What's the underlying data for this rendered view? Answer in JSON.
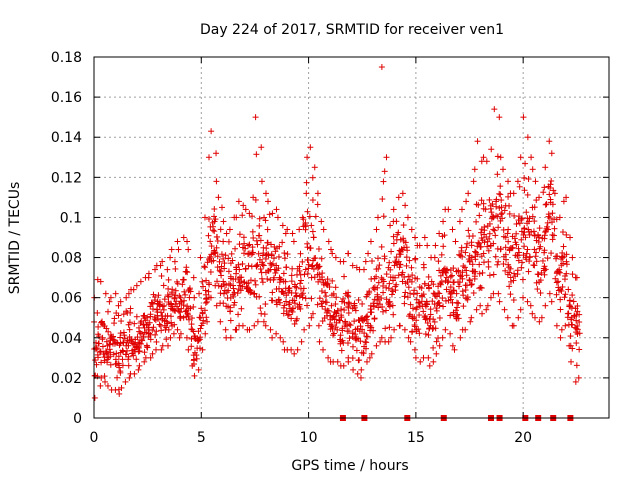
{
  "chart_data": {
    "type": "scatter",
    "title": "Day 224 of 2017, SRMTID for receiver ven1",
    "xlabel": "GPS time / hours",
    "ylabel": "SRMTID / TECUs",
    "xlim": [
      0,
      24
    ],
    "ylim": [
      0,
      0.18
    ],
    "grid": true,
    "x_ticks": [
      0,
      5,
      10,
      15,
      20
    ],
    "x_tick_labels": [
      "0",
      "5",
      "10",
      "15",
      "20"
    ],
    "y_ticks": [
      0,
      0.02,
      0.04,
      0.06,
      0.08,
      0.1,
      0.12,
      0.14,
      0.16,
      0.18
    ],
    "y_tick_labels": [
      "0",
      "0.02",
      "0.04",
      "0.06",
      "0.08",
      "0.1",
      "0.12",
      "0.14",
      "0.16",
      "0.18"
    ],
    "series": [
      {
        "name": "SRMTID",
        "color": "#e00000",
        "marker": "plus",
        "x": [
          0.0,
          0.15,
          0.3,
          0.45,
          0.6,
          0.75,
          0.9,
          1.05,
          1.2,
          1.35,
          1.5,
          1.65,
          1.8,
          1.95,
          2.1,
          2.25,
          2.4,
          2.55,
          2.7,
          2.85,
          3.0,
          3.15,
          3.3,
          3.45,
          3.6,
          3.75,
          3.9,
          4.05,
          4.2,
          4.35,
          4.5,
          4.65,
          4.8,
          4.95,
          5.1,
          5.25,
          5.4,
          5.55,
          5.7,
          5.85,
          6.0,
          6.15,
          6.3,
          6.45,
          6.6,
          6.75,
          6.9,
          7.05,
          7.2,
          7.35,
          7.5,
          7.65,
          7.8,
          7.95,
          8.1,
          8.25,
          8.4,
          8.55,
          8.7,
          8.85,
          9.0,
          9.15,
          9.3,
          9.45,
          9.6,
          9.75,
          9.9,
          10.05,
          10.2,
          10.35,
          10.5,
          10.65,
          10.8,
          10.95,
          11.1,
          11.25,
          11.4,
          11.55,
          11.7,
          11.85,
          12.0,
          12.15,
          12.3,
          12.45,
          12.6,
          12.75,
          12.9,
          13.05,
          13.2,
          13.35,
          13.5,
          13.65,
          13.8,
          13.95,
          14.1,
          14.25,
          14.4,
          14.55,
          14.7,
          14.85,
          15.0,
          15.15,
          15.3,
          15.45,
          15.6,
          15.75,
          15.9,
          16.05,
          16.2,
          16.35,
          16.5,
          16.65,
          16.8,
          16.95,
          17.1,
          17.25,
          17.4,
          17.55,
          17.7,
          17.85,
          18.0,
          18.15,
          18.3,
          18.45,
          18.6,
          18.75,
          18.9,
          19.05,
          19.2,
          19.35,
          19.5,
          19.65,
          19.8,
          19.95,
          20.1,
          20.25,
          20.4,
          20.55,
          20.7,
          20.85,
          21.0,
          21.15,
          21.3,
          21.45,
          21.6,
          21.75,
          21.9,
          22.05,
          22.2,
          22.35,
          22.5
        ],
        "y_mean": [
          0.03,
          0.038,
          0.04,
          0.036,
          0.034,
          0.035,
          0.036,
          0.032,
          0.034,
          0.036,
          0.038,
          0.04,
          0.038,
          0.04,
          0.042,
          0.044,
          0.045,
          0.046,
          0.048,
          0.05,
          0.05,
          0.052,
          0.05,
          0.055,
          0.058,
          0.06,
          0.058,
          0.06,
          0.058,
          0.055,
          0.045,
          0.035,
          0.038,
          0.05,
          0.06,
          0.07,
          0.09,
          0.1,
          0.085,
          0.075,
          0.07,
          0.065,
          0.065,
          0.07,
          0.07,
          0.075,
          0.075,
          0.072,
          0.07,
          0.075,
          0.08,
          0.085,
          0.08,
          0.078,
          0.075,
          0.07,
          0.072,
          0.07,
          0.065,
          0.06,
          0.06,
          0.058,
          0.055,
          0.06,
          0.065,
          0.075,
          0.08,
          0.085,
          0.09,
          0.08,
          0.065,
          0.06,
          0.055,
          0.05,
          0.05,
          0.048,
          0.045,
          0.045,
          0.05,
          0.05,
          0.045,
          0.045,
          0.045,
          0.045,
          0.048,
          0.05,
          0.055,
          0.06,
          0.065,
          0.07,
          0.065,
          0.065,
          0.07,
          0.075,
          0.08,
          0.08,
          0.075,
          0.07,
          0.065,
          0.06,
          0.055,
          0.055,
          0.06,
          0.055,
          0.05,
          0.05,
          0.055,
          0.06,
          0.065,
          0.07,
          0.07,
          0.06,
          0.055,
          0.065,
          0.07,
          0.07,
          0.075,
          0.08,
          0.085,
          0.09,
          0.085,
          0.09,
          0.09,
          0.095,
          0.1,
          0.1,
          0.095,
          0.09,
          0.085,
          0.08,
          0.08,
          0.085,
          0.09,
          0.1,
          0.1,
          0.095,
          0.09,
          0.085,
          0.08,
          0.085,
          0.095,
          0.105,
          0.1,
          0.08,
          0.07,
          0.075,
          0.08,
          0.06,
          0.05,
          0.045,
          0.045
        ],
        "y_min": [
          0.01,
          0.016,
          0.02,
          0.018,
          0.016,
          0.014,
          0.014,
          0.012,
          0.015,
          0.018,
          0.02,
          0.022,
          0.022,
          0.024,
          0.026,
          0.028,
          0.03,
          0.03,
          0.032,
          0.034,
          0.034,
          0.036,
          0.036,
          0.04,
          0.042,
          0.044,
          0.04,
          0.042,
          0.04,
          0.034,
          0.026,
          0.021,
          0.024,
          0.034,
          0.042,
          0.048,
          0.06,
          0.066,
          0.056,
          0.048,
          0.044,
          0.04,
          0.04,
          0.044,
          0.044,
          0.046,
          0.046,
          0.044,
          0.044,
          0.046,
          0.048,
          0.052,
          0.048,
          0.046,
          0.044,
          0.04,
          0.042,
          0.04,
          0.038,
          0.034,
          0.034,
          0.034,
          0.032,
          0.034,
          0.038,
          0.044,
          0.046,
          0.05,
          0.052,
          0.046,
          0.038,
          0.034,
          0.03,
          0.028,
          0.028,
          0.028,
          0.026,
          0.026,
          0.03,
          0.028,
          0.024,
          0.022,
          0.02,
          0.024,
          0.028,
          0.03,
          0.032,
          0.036,
          0.038,
          0.04,
          0.038,
          0.038,
          0.04,
          0.044,
          0.046,
          0.046,
          0.044,
          0.04,
          0.038,
          0.034,
          0.03,
          0.028,
          0.03,
          0.03,
          0.026,
          0.028,
          0.032,
          0.036,
          0.04,
          0.044,
          0.042,
          0.036,
          0.034,
          0.04,
          0.044,
          0.044,
          0.048,
          0.05,
          0.054,
          0.056,
          0.052,
          0.054,
          0.056,
          0.06,
          0.062,
          0.062,
          0.058,
          0.054,
          0.05,
          0.046,
          0.046,
          0.05,
          0.054,
          0.06,
          0.058,
          0.056,
          0.052,
          0.05,
          0.048,
          0.05,
          0.056,
          0.062,
          0.058,
          0.046,
          0.04,
          0.044,
          0.046,
          0.036,
          0.028,
          0.018,
          0.02
        ],
        "y_max": [
          0.06,
          0.069,
          0.068,
          0.062,
          0.058,
          0.06,
          0.062,
          0.056,
          0.058,
          0.06,
          0.062,
          0.064,
          0.064,
          0.066,
          0.068,
          0.07,
          0.07,
          0.072,
          0.074,
          0.076,
          0.076,
          0.078,
          0.074,
          0.08,
          0.084,
          0.088,
          0.084,
          0.09,
          0.088,
          0.084,
          0.07,
          0.06,
          0.062,
          0.08,
          0.1,
          0.13,
          0.143,
          0.132,
          0.118,
          0.105,
          0.098,
          0.092,
          0.094,
          0.1,
          0.1,
          0.108,
          0.106,
          0.104,
          0.102,
          0.11,
          0.15,
          0.135,
          0.118,
          0.112,
          0.108,
          0.102,
          0.104,
          0.1,
          0.096,
          0.092,
          0.094,
          0.092,
          0.088,
          0.094,
          0.1,
          0.112,
          0.13,
          0.135,
          0.125,
          0.112,
          0.098,
          0.094,
          0.088,
          0.084,
          0.082,
          0.08,
          0.078,
          0.078,
          0.082,
          0.082,
          0.076,
          0.075,
          0.074,
          0.074,
          0.078,
          0.082,
          0.088,
          0.094,
          0.1,
          0.175,
          0.13,
          0.096,
          0.098,
          0.104,
          0.11,
          0.112,
          0.106,
          0.1,
          0.094,
          0.09,
          0.086,
          0.086,
          0.09,
          0.086,
          0.08,
          0.08,
          0.086,
          0.092,
          0.098,
          0.104,
          0.104,
          0.094,
          0.088,
          0.098,
          0.104,
          0.108,
          0.112,
          0.118,
          0.124,
          0.138,
          0.128,
          0.13,
          0.128,
          0.134,
          0.154,
          0.15,
          0.13,
          0.124,
          0.118,
          0.112,
          0.112,
          0.118,
          0.13,
          0.15,
          0.14,
          0.13,
          0.124,
          0.118,
          0.11,
          0.115,
          0.125,
          0.138,
          0.132,
          0.112,
          0.1,
          0.108,
          0.11,
          0.09,
          0.08,
          0.07,
          0.07
        ]
      },
      {
        "name": "zero-markers",
        "color": "#e00000",
        "marker": "square",
        "x": [
          11.6,
          12.6,
          14.6,
          16.3,
          18.5,
          18.9,
          20.1,
          20.7,
          21.4,
          22.2
        ],
        "y": [
          0,
          0,
          0,
          0,
          0,
          0,
          0,
          0,
          0,
          0
        ]
      }
    ]
  }
}
